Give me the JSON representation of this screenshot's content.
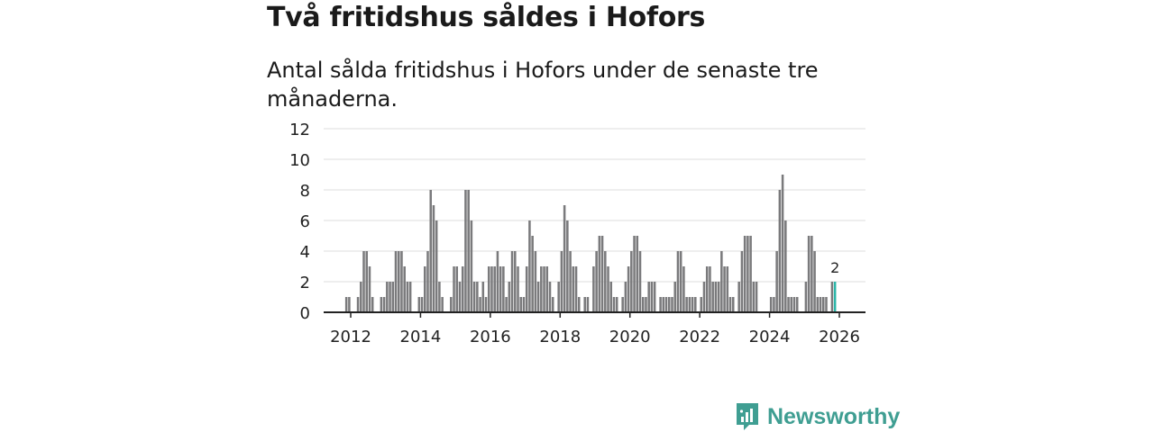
{
  "title": "Två fritidshus såldes i Hofors",
  "subtitle": "Antal sålda fritidshus i Hofors under de senaste tre månaderna.",
  "brand": "Newsworthy",
  "colors": {
    "bar": "#7a7a7c",
    "highlight": "#2cb5a8",
    "grid": "#dddddd",
    "axis": "#222222",
    "brand": "#3f9e92"
  },
  "chart_data": {
    "type": "bar",
    "title": "Två fritidshus såldes i Hofors",
    "subtitle": "Antal sålda fritidshus i Hofors under de senaste tre månaderna.",
    "xlabel": "",
    "ylabel": "",
    "ylim": [
      0,
      12
    ],
    "yticks": [
      "0",
      "2",
      "4",
      "6",
      "8",
      "10",
      "12"
    ],
    "xticks": [
      "2012",
      "2014",
      "2016",
      "2018",
      "2020",
      "2022",
      "2024",
      "2026"
    ],
    "x_start": "2011-12",
    "x_end": "2025-12",
    "grid": true,
    "highlight": {
      "category": "2025-12",
      "value": 2,
      "label": "2"
    },
    "categories": [
      "2011-12",
      "2012-01",
      "2012-02",
      "2012-03",
      "2012-04",
      "2012-05",
      "2012-06",
      "2012-07",
      "2012-08",
      "2012-09",
      "2012-10",
      "2012-11",
      "2012-12",
      "2013-01",
      "2013-02",
      "2013-03",
      "2013-04",
      "2013-05",
      "2013-06",
      "2013-07",
      "2013-08",
      "2013-09",
      "2013-10",
      "2013-11",
      "2013-12",
      "2014-01",
      "2014-02",
      "2014-03",
      "2014-04",
      "2014-05",
      "2014-06",
      "2014-07",
      "2014-08",
      "2014-09",
      "2014-10",
      "2014-11",
      "2014-12",
      "2015-01",
      "2015-02",
      "2015-03",
      "2015-04",
      "2015-05",
      "2015-06",
      "2015-07",
      "2015-08",
      "2015-09",
      "2015-10",
      "2015-11",
      "2015-12",
      "2016-01",
      "2016-02",
      "2016-03",
      "2016-04",
      "2016-05",
      "2016-06",
      "2016-07",
      "2016-08",
      "2016-09",
      "2016-10",
      "2016-11",
      "2016-12",
      "2017-01",
      "2017-02",
      "2017-03",
      "2017-04",
      "2017-05",
      "2017-06",
      "2017-07",
      "2017-08",
      "2017-09",
      "2017-10",
      "2017-11",
      "2017-12",
      "2018-01",
      "2018-02",
      "2018-03",
      "2018-04",
      "2018-05",
      "2018-06",
      "2018-07",
      "2018-08",
      "2018-09",
      "2018-10",
      "2018-11",
      "2018-12",
      "2019-01",
      "2019-02",
      "2019-03",
      "2019-04",
      "2019-05",
      "2019-06",
      "2019-07",
      "2019-08",
      "2019-09",
      "2019-10",
      "2019-11",
      "2019-12",
      "2020-01",
      "2020-02",
      "2020-03",
      "2020-04",
      "2020-05",
      "2020-06",
      "2020-07",
      "2020-08",
      "2020-09",
      "2020-10",
      "2020-11",
      "2020-12",
      "2021-01",
      "2021-02",
      "2021-03",
      "2021-04",
      "2021-05",
      "2021-06",
      "2021-07",
      "2021-08",
      "2021-09",
      "2021-10",
      "2021-11",
      "2021-12",
      "2022-01",
      "2022-02",
      "2022-03",
      "2022-04",
      "2022-05",
      "2022-06",
      "2022-07",
      "2022-08",
      "2022-09",
      "2022-10",
      "2022-11",
      "2022-12",
      "2023-01",
      "2023-02",
      "2023-03",
      "2023-04",
      "2023-05",
      "2023-06",
      "2023-07",
      "2023-08",
      "2023-09",
      "2023-10",
      "2023-11",
      "2023-12",
      "2024-01",
      "2024-02",
      "2024-03",
      "2024-04",
      "2024-05",
      "2024-06",
      "2024-07",
      "2024-08",
      "2024-09",
      "2024-10",
      "2024-11",
      "2024-12",
      "2025-01",
      "2025-02",
      "2025-03",
      "2025-04",
      "2025-05",
      "2025-06",
      "2025-07",
      "2025-08",
      "2025-09",
      "2025-10",
      "2025-11",
      "2025-12"
    ],
    "values": [
      1,
      1,
      0,
      0,
      1,
      2,
      4,
      4,
      3,
      1,
      0,
      0,
      1,
      1,
      2,
      2,
      2,
      4,
      4,
      4,
      3,
      2,
      2,
      0,
      0,
      1,
      1,
      3,
      4,
      8,
      7,
      6,
      2,
      1,
      0,
      0,
      1,
      3,
      3,
      2,
      3,
      8,
      8,
      6,
      2,
      2,
      1,
      2,
      1,
      3,
      3,
      3,
      4,
      3,
      3,
      1,
      2,
      4,
      4,
      3,
      1,
      1,
      3,
      6,
      5,
      4,
      2,
      3,
      3,
      3,
      2,
      1,
      0,
      2,
      4,
      7,
      6,
      4,
      3,
      3,
      1,
      0,
      1,
      1,
      0,
      3,
      4,
      5,
      5,
      4,
      3,
      2,
      1,
      1,
      0,
      1,
      2,
      3,
      4,
      5,
      5,
      4,
      1,
      1,
      2,
      2,
      2,
      0,
      1,
      1,
      1,
      1,
      1,
      2,
      4,
      4,
      3,
      1,
      1,
      1,
      1,
      0,
      1,
      2,
      3,
      3,
      2,
      2,
      2,
      4,
      3,
      3,
      1,
      1,
      0,
      2,
      4,
      5,
      5,
      5,
      2,
      2,
      0,
      0,
      0,
      0,
      1,
      1,
      4,
      8,
      9,
      6,
      1,
      1,
      1,
      1,
      0,
      0,
      2,
      5,
      5,
      4,
      1,
      1,
      1,
      1,
      0,
      2,
      2
    ]
  }
}
